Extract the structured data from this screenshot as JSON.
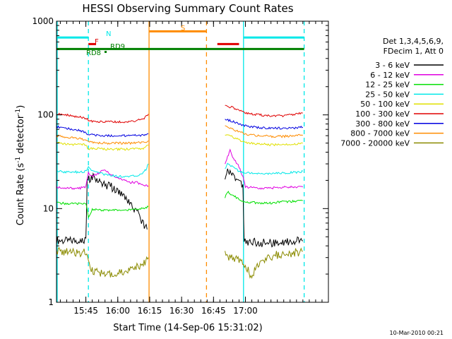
{
  "chart_data": {
    "type": "line",
    "title": "HESSI Observing Summary Count Rates",
    "xlabel": "Start Time (14-Sep-06 15:31:02)",
    "ylabel_main": "Count Rate (s",
    "ylabel_sup1": "-1",
    "ylabel_mid": " detector",
    "ylabel_sup2": "-1",
    "ylabel_end": ")",
    "yscale": "log",
    "ylim": [
      1,
      1000
    ],
    "xlim_minutes": [
      15.52,
      17.65
    ],
    "x_ticks": [
      {
        "minute": 15.75,
        "label": "15:45"
      },
      {
        "minute": 16.0,
        "label": "16:00"
      },
      {
        "minute": 16.25,
        "label": "16:15"
      },
      {
        "minute": 16.5,
        "label": "16:30"
      },
      {
        "minute": 16.75,
        "label": "16:45"
      },
      {
        "minute": 17.0,
        "label": "17:00"
      }
    ],
    "y_ticks": [
      {
        "value": 1,
        "label": "1"
      },
      {
        "value": 10,
        "label": "10"
      },
      {
        "value": 100,
        "label": "100"
      },
      {
        "value": 1000,
        "label": "1000"
      }
    ],
    "legend_header": [
      "Det 1,3,4,5,6,9,",
      "FDecim 1, Att 0"
    ],
    "legend_position": "right",
    "series": [
      {
        "name": "3 - 6 keV",
        "color": "#000000",
        "segments": [
          [
            [
              15.52,
              4.6
            ],
            [
              15.6,
              4.5
            ],
            [
              15.7,
              4.6
            ],
            [
              15.75,
              4.7
            ],
            [
              15.76,
              20
            ],
            [
              15.8,
              22
            ],
            [
              15.85,
              20
            ],
            [
              15.9,
              18
            ],
            [
              15.95,
              17
            ],
            [
              16.0,
              15
            ],
            [
              16.05,
              13
            ],
            [
              16.1,
              11
            ],
            [
              16.15,
              9
            ],
            [
              16.2,
              7
            ],
            [
              16.23,
              6
            ]
          ],
          [
            [
              16.84,
              20
            ],
            [
              16.86,
              26
            ],
            [
              16.88,
              25
            ],
            [
              16.9,
              22
            ],
            [
              16.95,
              20
            ],
            [
              16.98,
              18
            ],
            [
              16.99,
              4.5
            ],
            [
              17.05,
              4.4
            ],
            [
              17.1,
              4.3
            ],
            [
              17.2,
              4.3
            ],
            [
              17.3,
              4.4
            ],
            [
              17.4,
              4.5
            ],
            [
              17.45,
              4.5
            ]
          ]
        ]
      },
      {
        "name": "6 - 12 keV",
        "color": "#e000e0",
        "segments": [
          [
            [
              15.52,
              17
            ],
            [
              15.6,
              16.5
            ],
            [
              15.7,
              16.5
            ],
            [
              15.75,
              17
            ],
            [
              15.77,
              24
            ],
            [
              15.8,
              22
            ],
            [
              15.85,
              24
            ],
            [
              15.9,
              26
            ],
            [
              15.95,
              23
            ],
            [
              16.0,
              21
            ],
            [
              16.05,
              20
            ],
            [
              16.1,
              19
            ],
            [
              16.15,
              19
            ],
            [
              16.2,
              18
            ],
            [
              16.24,
              17.5
            ]
          ],
          [
            [
              16.84,
              30
            ],
            [
              16.86,
              36
            ],
            [
              16.88,
              42
            ],
            [
              16.9,
              35
            ],
            [
              16.95,
              28
            ],
            [
              16.98,
              22
            ],
            [
              17.0,
              17
            ],
            [
              17.1,
              16.5
            ],
            [
              17.2,
              16.5
            ],
            [
              17.3,
              17
            ],
            [
              17.4,
              17
            ],
            [
              17.45,
              17
            ]
          ]
        ]
      },
      {
        "name": "12 - 25 keV",
        "color": "#00e000",
        "segments": [
          [
            [
              15.52,
              11.5
            ],
            [
              15.6,
              11.3
            ],
            [
              15.7,
              11.3
            ],
            [
              15.75,
              11.5
            ],
            [
              15.77,
              8
            ],
            [
              15.8,
              9.8
            ],
            [
              15.9,
              9.6
            ],
            [
              16.0,
              9.6
            ],
            [
              16.1,
              9.7
            ],
            [
              16.2,
              10
            ],
            [
              16.24,
              10.5
            ]
          ],
          [
            [
              16.84,
              13
            ],
            [
              16.86,
              15
            ],
            [
              16.9,
              14
            ],
            [
              16.95,
              12.5
            ],
            [
              17.0,
              11.8
            ],
            [
              17.1,
              11.5
            ],
            [
              17.2,
              11.5
            ],
            [
              17.3,
              11.8
            ],
            [
              17.4,
              12
            ],
            [
              17.45,
              12.2
            ]
          ]
        ]
      },
      {
        "name": "25 - 50 keV",
        "color": "#00e8e8",
        "segments": [
          [
            [
              15.52,
              25
            ],
            [
              15.6,
              24.5
            ],
            [
              15.7,
              24.5
            ],
            [
              15.75,
              25
            ],
            [
              15.77,
              28
            ],
            [
              15.8,
              25
            ],
            [
              15.9,
              23
            ],
            [
              16.0,
              22
            ],
            [
              16.1,
              22
            ],
            [
              16.18,
              23
            ],
            [
              16.22,
              26
            ],
            [
              16.24,
              30
            ]
          ],
          [
            [
              16.84,
              27
            ],
            [
              16.86,
              30
            ],
            [
              16.9,
              28
            ],
            [
              16.95,
              25
            ],
            [
              17.0,
              24
            ],
            [
              17.1,
              23.5
            ],
            [
              17.2,
              23.5
            ],
            [
              17.3,
              24
            ],
            [
              17.4,
              24.5
            ],
            [
              17.45,
              25
            ]
          ]
        ]
      },
      {
        "name": "50 - 100 keV",
        "color": "#e0e000",
        "segments": [
          [
            [
              15.52,
              50
            ],
            [
              15.6,
              49
            ],
            [
              15.7,
              48
            ],
            [
              15.75,
              48
            ],
            [
              15.77,
              43
            ],
            [
              15.8,
              44
            ],
            [
              15.9,
              43
            ],
            [
              16.0,
              43
            ],
            [
              16.1,
              43
            ],
            [
              16.2,
              44
            ],
            [
              16.24,
              48
            ]
          ],
          [
            [
              16.84,
              62
            ],
            [
              16.9,
              58
            ],
            [
              16.95,
              54
            ],
            [
              17.0,
              51
            ],
            [
              17.1,
              49
            ],
            [
              17.2,
              48
            ],
            [
              17.3,
              48
            ],
            [
              17.4,
              49
            ],
            [
              17.45,
              50
            ]
          ]
        ]
      },
      {
        "name": "100 - 300 keV",
        "color": "#e00000",
        "segments": [
          [
            [
              15.52,
              102
            ],
            [
              15.6,
              100
            ],
            [
              15.7,
              95
            ],
            [
              15.75,
              92
            ],
            [
              15.77,
              88
            ],
            [
              15.8,
              85
            ],
            [
              15.9,
              84
            ],
            [
              16.0,
              84
            ],
            [
              16.1,
              85
            ],
            [
              16.2,
              90
            ],
            [
              16.24,
              102
            ]
          ],
          [
            [
              16.84,
              125
            ],
            [
              16.9,
              120
            ],
            [
              16.95,
              112
            ],
            [
              17.0,
              105
            ],
            [
              17.1,
              100
            ],
            [
              17.2,
              98
            ],
            [
              17.3,
              98
            ],
            [
              17.4,
              102
            ],
            [
              17.45,
              105
            ]
          ]
        ]
      },
      {
        "name": "300 - 800 keV",
        "color": "#0000e0",
        "segments": [
          [
            [
              15.52,
              75
            ],
            [
              15.6,
              72
            ],
            [
              15.7,
              68
            ],
            [
              15.75,
              65
            ],
            [
              15.77,
              62
            ],
            [
              15.8,
              61
            ],
            [
              15.9,
              60
            ],
            [
              16.0,
              60
            ],
            [
              16.1,
              60
            ],
            [
              16.2,
              61
            ],
            [
              16.24,
              63
            ]
          ],
          [
            [
              16.84,
              90
            ],
            [
              16.9,
              85
            ],
            [
              16.95,
              80
            ],
            [
              17.0,
              76
            ],
            [
              17.1,
              73
            ],
            [
              17.2,
              72
            ],
            [
              17.3,
              72
            ],
            [
              17.4,
              73
            ],
            [
              17.45,
              74
            ]
          ]
        ]
      },
      {
        "name": "800 - 7000 keV",
        "color": "#ff8c00",
        "segments": [
          [
            [
              15.52,
              60
            ],
            [
              15.6,
              58
            ],
            [
              15.7,
              56
            ],
            [
              15.75,
              54
            ],
            [
              15.77,
              52
            ],
            [
              15.8,
              51
            ],
            [
              15.9,
              50
            ],
            [
              16.0,
              50
            ],
            [
              16.1,
              50
            ],
            [
              16.2,
              51
            ],
            [
              16.24,
              53
            ]
          ],
          [
            [
              16.84,
              75
            ],
            [
              16.9,
              70
            ],
            [
              16.95,
              66
            ],
            [
              17.0,
              62
            ],
            [
              17.1,
              60
            ],
            [
              17.2,
              59
            ],
            [
              17.3,
              59
            ],
            [
              17.4,
              60
            ],
            [
              17.45,
              61
            ]
          ]
        ]
      },
      {
        "name": "7000 - 20000 keV",
        "color": "#8b8b00",
        "segments": [
          [
            [
              15.52,
              3.5
            ],
            [
              15.6,
              3.4
            ],
            [
              15.7,
              3.4
            ],
            [
              15.75,
              3.4
            ],
            [
              15.77,
              2.6
            ],
            [
              15.8,
              2.2
            ],
            [
              15.9,
              2.0
            ],
            [
              16.0,
              2.1
            ],
            [
              16.1,
              2.2
            ],
            [
              16.2,
              2.6
            ],
            [
              16.24,
              3.0
            ]
          ],
          [
            [
              16.84,
              3.2
            ],
            [
              16.9,
              3.0
            ],
            [
              16.95,
              2.8
            ],
            [
              17.0,
              2.4
            ],
            [
              17.05,
              1.9
            ],
            [
              17.1,
              2.6
            ],
            [
              17.2,
              3.1
            ],
            [
              17.3,
              3.3
            ],
            [
              17.4,
              3.4
            ],
            [
              17.45,
              3.5
            ]
          ]
        ]
      }
    ],
    "vertical_markers": [
      {
        "minute": 15.77,
        "color": "#00e8e8",
        "style": "dashed"
      },
      {
        "minute": 16.245,
        "color": "#ff8c00",
        "style": "solid"
      },
      {
        "minute": 16.695,
        "color": "#ff8c00",
        "style": "dashed"
      },
      {
        "minute": 16.985,
        "color": "#00e8e8",
        "style": "solid"
      },
      {
        "minute": 17.46,
        "color": "#00e8e8",
        "style": "dashed"
      }
    ],
    "flag_bars": [
      {
        "label": "N",
        "color": "#00e8e8",
        "segments": [
          [
            15.52,
            15.77
          ],
          [
            16.985,
            17.46
          ]
        ],
        "value": 670
      },
      {
        "label": "S",
        "color": "#ff8c00",
        "segments": [
          [
            16.245,
            16.695
          ]
        ],
        "value": 780
      },
      {
        "label": "F",
        "color": "#e00000",
        "segments": [
          [
            15.77,
            15.83
          ],
          [
            16.78,
            16.95
          ]
        ],
        "value": 570
      },
      {
        "label": "RD8",
        "color": "#008000",
        "segments": [
          [
            15.52,
            17.46
          ]
        ],
        "value": 505
      }
    ],
    "flag_labels": [
      {
        "text": "N",
        "color": "#00e8e8"
      },
      {
        "text": "S",
        "color": "#ff8c00"
      },
      {
        "text": "F",
        "color": "#e00000"
      },
      {
        "text": "RD9",
        "color": "#008000"
      },
      {
        "text": "RD8",
        "color": "#008000"
      }
    ]
  },
  "footer": "10-Mar-2010 00:21"
}
